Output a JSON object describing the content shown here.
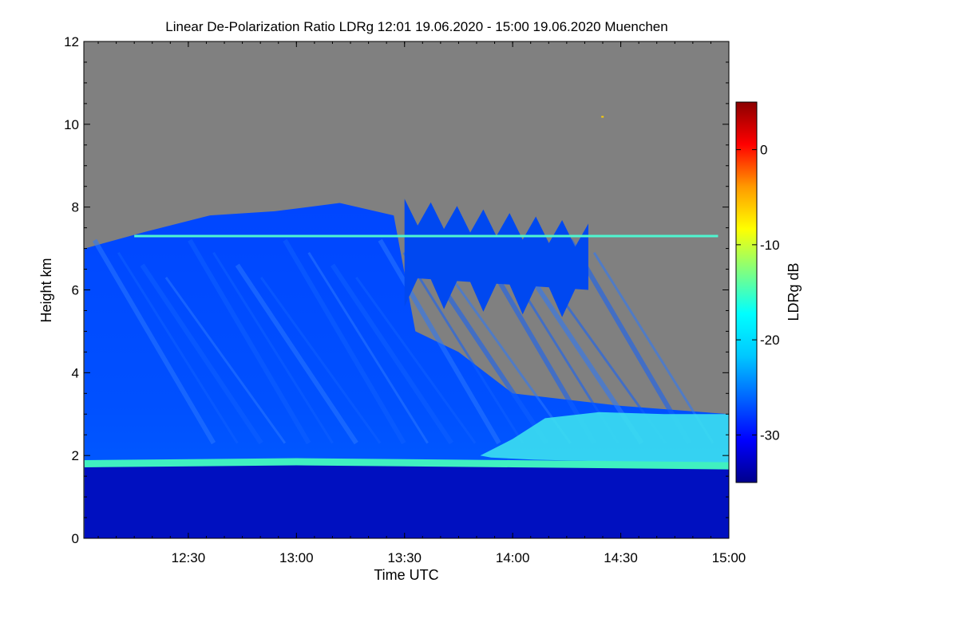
{
  "chart_data": {
    "type": "heatmap",
    "title": "Linear De-Polarization Ratio LDRg   12:01 19.06.2020 - 15:00 19.06.2020 Muenchen",
    "xlabel": "Time UTC",
    "ylabel": "Height km",
    "x_range_hours": [
      12.0167,
      15.0
    ],
    "ylim": [
      0,
      12
    ],
    "x_ticks": [
      {
        "value": 12.5,
        "label": "12:30"
      },
      {
        "value": 13.0,
        "label": "13:00"
      },
      {
        "value": 13.5,
        "label": "13:30"
      },
      {
        "value": 14.0,
        "label": "14:00"
      },
      {
        "value": 14.5,
        "label": "14:30"
      },
      {
        "value": 15.0,
        "label": "15:00"
      }
    ],
    "y_ticks": [
      0,
      2,
      4,
      6,
      8,
      10,
      12
    ],
    "no_data_color": "#808080",
    "colorbar": {
      "label": "LDRg dB",
      "range": [
        -35,
        5
      ],
      "ticks": [
        0,
        -10,
        -20,
        -30
      ],
      "colors": [
        "#00008b",
        "#0000ff",
        "#0064ff",
        "#00c8ff",
        "#00ffff",
        "#80ff80",
        "#ffff00",
        "#ff9900",
        "#ff0000",
        "#8b0000"
      ]
    },
    "features": {
      "cloud_top_profile_km": [
        {
          "t": 12.02,
          "top": 7.0
        },
        {
          "t": 12.3,
          "top": 7.4
        },
        {
          "t": 12.6,
          "top": 7.8
        },
        {
          "t": 12.9,
          "top": 7.9
        },
        {
          "t": 13.2,
          "top": 8.1
        },
        {
          "t": 13.45,
          "top": 7.8
        },
        {
          "t": 13.55,
          "top": 5.0
        },
        {
          "t": 13.75,
          "top": 4.5
        },
        {
          "t": 14.0,
          "top": 3.5
        },
        {
          "t": 14.5,
          "top": 3.2
        },
        {
          "t": 15.0,
          "top": 3.0
        }
      ],
      "upper_layer": {
        "t_start": 13.5,
        "t_end": 14.35,
        "base_km": 5.8,
        "top_km": 8.2
      },
      "bright_layer_km": 7.3,
      "boundary_layer_top_km": [
        {
          "t": 12.02,
          "h": 1.8
        },
        {
          "t": 13.0,
          "h": 1.85
        },
        {
          "t": 14.0,
          "h": 1.8
        },
        {
          "t": 15.0,
          "h": 1.75
        }
      ],
      "isolated_bit": {
        "t": 14.41,
        "h": 10.2
      }
    }
  }
}
